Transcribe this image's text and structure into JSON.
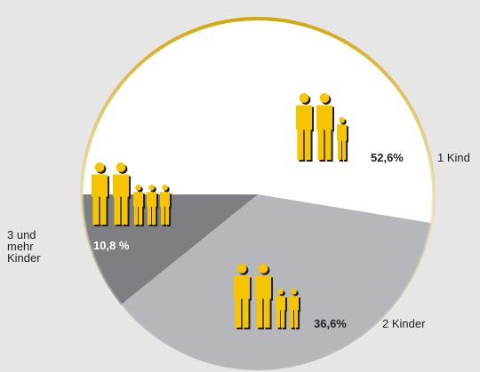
{
  "chart_data": {
    "type": "pie",
    "categories": [
      "1 Kind",
      "2 Kinder",
      "3 und mehr Kinder"
    ],
    "values": [
      52.6,
      36.6,
      10.8
    ],
    "value_labels": [
      "52,6%",
      "36,6%",
      "10,8 %"
    ],
    "colors": [
      "#ffffff",
      "#b6b7bb",
      "#7e7f83"
    ]
  }
}
